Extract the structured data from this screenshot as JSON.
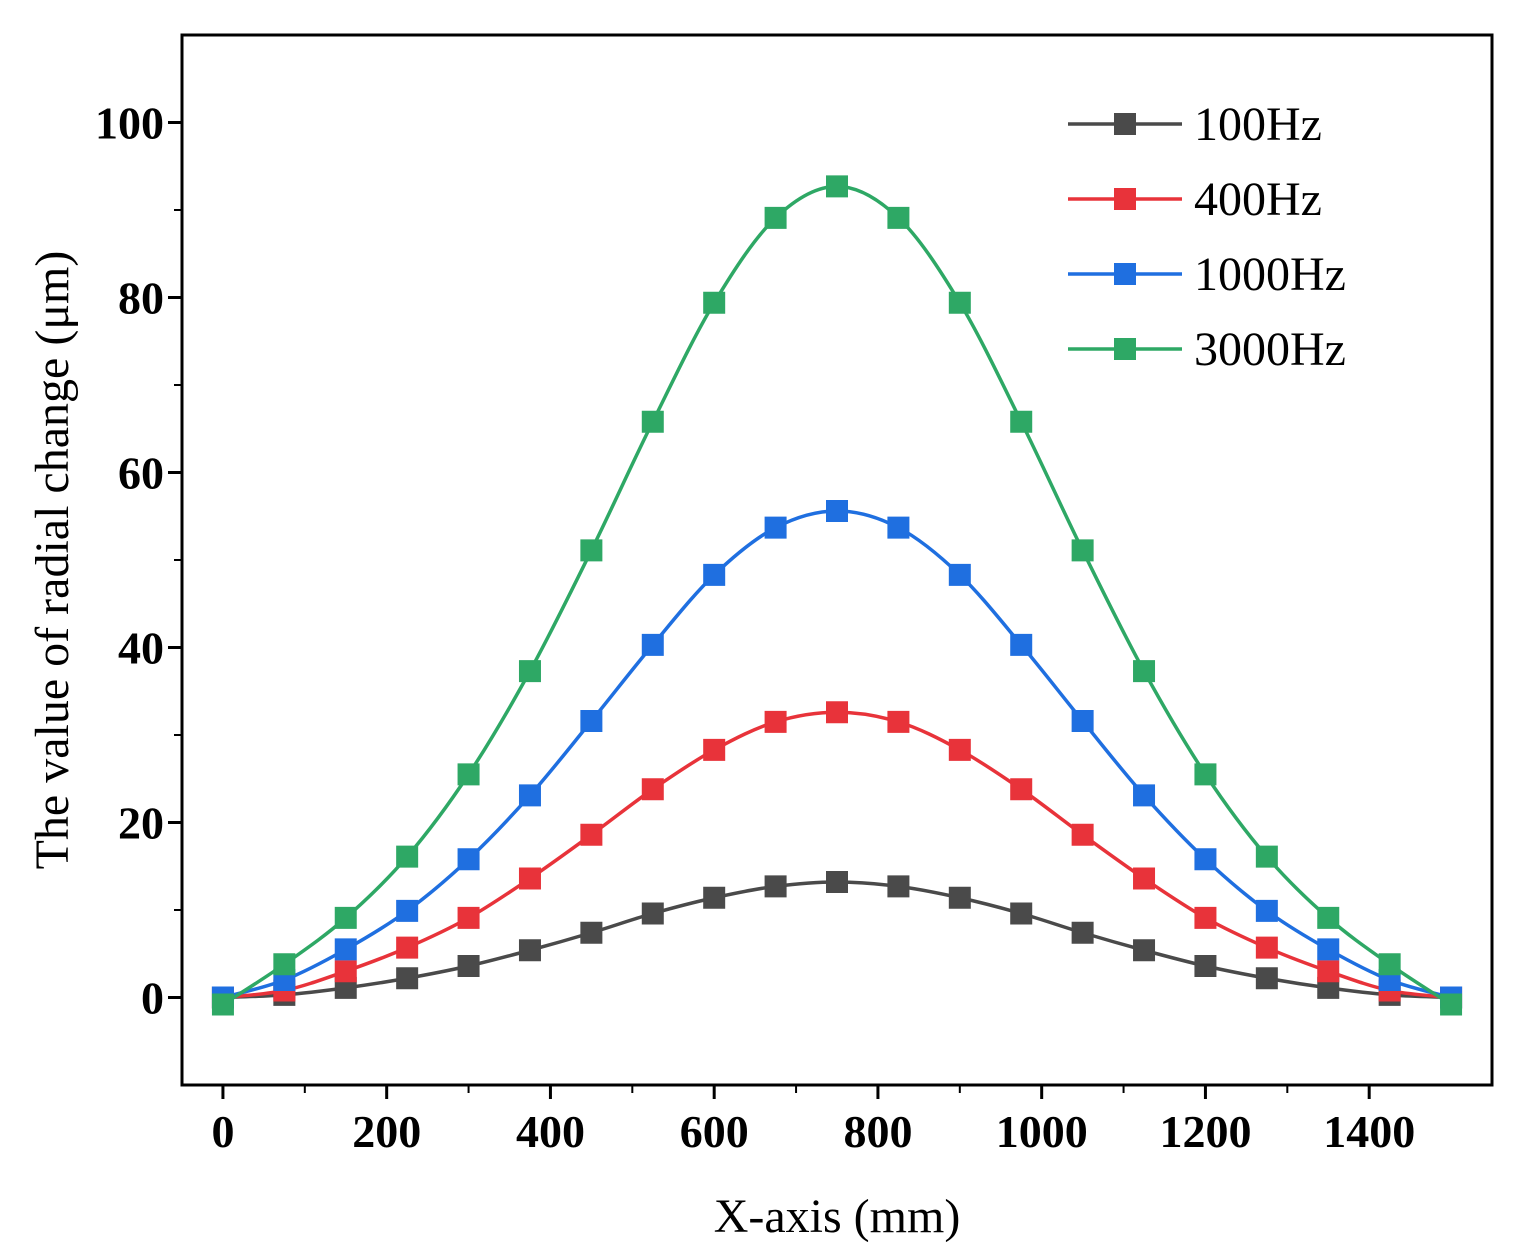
{
  "chart_data": {
    "type": "line",
    "title": "",
    "xlabel": "X-axis (mm)",
    "ylabel": "The value of radial change (μm)",
    "xlim": [
      -50,
      1550
    ],
    "ylim": [
      -10,
      110
    ],
    "xticks": [
      0,
      200,
      400,
      600,
      800,
      1000,
      1200,
      1400
    ],
    "yticks": [
      0,
      20,
      40,
      60,
      80,
      100
    ],
    "grid": false,
    "legend_position": "top-right",
    "marker": "square",
    "x": [
      0,
      75,
      150,
      225,
      300,
      375,
      450,
      525,
      600,
      675,
      750,
      825,
      900,
      975,
      1050,
      1125,
      1200,
      1275,
      1350,
      1425,
      1500
    ],
    "series": [
      {
        "name": "100Hz",
        "color": "#4a4a4a",
        "values": [
          0,
          0.3,
          1.1,
          2.2,
          3.6,
          5.4,
          7.4,
          9.6,
          11.4,
          12.7,
          13.2,
          12.7,
          11.4,
          9.6,
          7.4,
          5.4,
          3.6,
          2.2,
          1.1,
          0.3,
          0
        ]
      },
      {
        "name": "400Hz",
        "color": "#e8333a",
        "values": [
          0,
          0.8,
          3.0,
          5.7,
          9.1,
          13.6,
          18.6,
          23.8,
          28.3,
          31.5,
          32.6,
          31.5,
          28.3,
          23.8,
          18.6,
          13.6,
          9.1,
          5.7,
          3.0,
          0.8,
          0
        ]
      },
      {
        "name": "1000Hz",
        "color": "#1f6fe0",
        "values": [
          0,
          2.0,
          5.5,
          9.9,
          15.8,
          23.1,
          31.6,
          40.3,
          48.3,
          53.7,
          55.6,
          53.7,
          48.3,
          40.3,
          31.6,
          23.1,
          15.8,
          9.9,
          5.5,
          2.0,
          0
        ]
      },
      {
        "name": "3000Hz",
        "color": "#2ea865",
        "values": [
          -0.8,
          3.8,
          9.1,
          16.1,
          25.5,
          37.3,
          51.1,
          65.8,
          79.4,
          89.1,
          92.7,
          89.1,
          79.4,
          65.8,
          51.1,
          37.3,
          25.5,
          16.1,
          9.1,
          3.8,
          -0.8
        ]
      }
    ]
  }
}
